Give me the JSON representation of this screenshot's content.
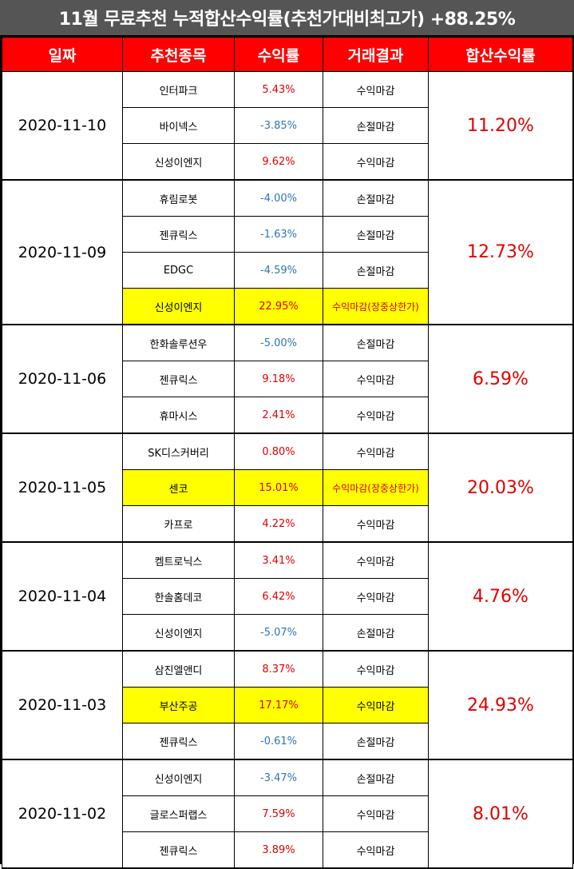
{
  "title": "11월 무료추천 누적합산수익률(추천가대비최고가) +88.25%",
  "headers": [
    "일짜",
    "추천종목",
    "수익률",
    "거래결과",
    "합산수익률"
  ],
  "groups": [
    {
      "date": "2020-11-10",
      "total": "11.20%",
      "rows": [
        {
          "stock": "인터파크",
          "rate": "5.43%",
          "result": "수익마감",
          "sign": "pos",
          "hl": false
        },
        {
          "stock": "바이넥스",
          "rate": "-3.85%",
          "result": "손절마감",
          "sign": "neg",
          "hl": false
        },
        {
          "stock": "신성이엔지",
          "rate": "9.62%",
          "result": "수익마감",
          "sign": "pos",
          "hl": false
        }
      ]
    },
    {
      "date": "2020-11-09",
      "total": "12.73%",
      "rows": [
        {
          "stock": "휴림로봇",
          "rate": "-4.00%",
          "result": "손절마감",
          "sign": "neg",
          "hl": false
        },
        {
          "stock": "젠큐릭스",
          "rate": "-1.63%",
          "result": "손절마감",
          "sign": "neg",
          "hl": false
        },
        {
          "stock": "EDGC",
          "rate": "-4.59%",
          "result": "손절마감",
          "sign": "neg",
          "hl": false
        },
        {
          "stock": "신성이엔지",
          "rate": "22.95%",
          "result": "수익마감(장중상한가)",
          "sign": "pos",
          "hl": true,
          "hlres": true
        }
      ]
    },
    {
      "date": "2020-11-06",
      "total": "6.59%",
      "rows": [
        {
          "stock": "한화솔루션우",
          "rate": "-5.00%",
          "result": "손절마감",
          "sign": "neg",
          "hl": false
        },
        {
          "stock": "젠큐릭스",
          "rate": "9.18%",
          "result": "수익마감",
          "sign": "pos",
          "hl": false
        },
        {
          "stock": "휴마시스",
          "rate": "2.41%",
          "result": "수익마감",
          "sign": "pos",
          "hl": false
        }
      ]
    },
    {
      "date": "2020-11-05",
      "total": "20.03%",
      "rows": [
        {
          "stock": "SK디스커버리",
          "rate": "0.80%",
          "result": "수익마감",
          "sign": "pos",
          "hl": false
        },
        {
          "stock": "센코",
          "rate": "15.01%",
          "result": "수익마감(장중상한가)",
          "sign": "pos",
          "hl": true,
          "hlres": true
        },
        {
          "stock": "카프로",
          "rate": "4.22%",
          "result": "수익마감",
          "sign": "pos",
          "hl": false
        }
      ]
    },
    {
      "date": "2020-11-04",
      "total": "4.76%",
      "rows": [
        {
          "stock": "켐트로닉스",
          "rate": "3.41%",
          "result": "수익마감",
          "sign": "pos",
          "hl": false
        },
        {
          "stock": "한솔홈데코",
          "rate": "6.42%",
          "result": "수익마감",
          "sign": "pos",
          "hl": false
        },
        {
          "stock": "신성이엔지",
          "rate": "-5.07%",
          "result": "손절마감",
          "sign": "neg",
          "hl": false
        }
      ]
    },
    {
      "date": "2020-11-03",
      "total": "24.93%",
      "rows": [
        {
          "stock": "삼진엘앤디",
          "rate": "8.37%",
          "result": "수익마감",
          "sign": "pos",
          "hl": false
        },
        {
          "stock": "부산주공",
          "rate": "17.17%",
          "result": "수익마감",
          "sign": "pos",
          "hl": true,
          "hlres": false
        },
        {
          "stock": "젠큐릭스",
          "rate": "-0.61%",
          "result": "손절마감",
          "sign": "neg",
          "hl": false
        }
      ]
    },
    {
      "date": "2020-11-02",
      "total": "8.01%",
      "rows": [
        {
          "stock": "신성이엔지",
          "rate": "-3.47%",
          "result": "손절마감",
          "sign": "neg",
          "hl": false
        },
        {
          "stock": "글로스퍼랩스",
          "rate": "7.59%",
          "result": "수익마감",
          "sign": "pos",
          "hl": false
        },
        {
          "stock": "젠큐릭스",
          "rate": "3.89%",
          "result": "수익마감",
          "sign": "pos",
          "hl": false
        }
      ]
    }
  ],
  "colors": {
    "header_bg": "#ff0000",
    "title_bg": "#555555",
    "positive": "#e00000",
    "negative": "#2e75b6",
    "highlight": "#ffff00"
  }
}
